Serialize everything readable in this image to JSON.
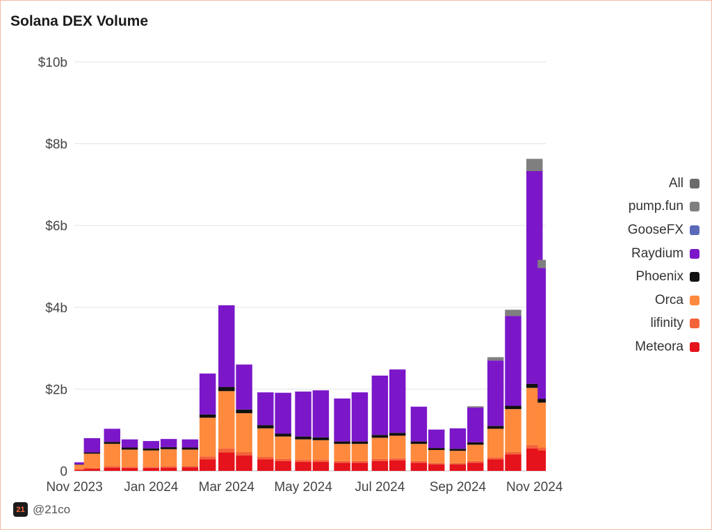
{
  "chart_data": {
    "type": "bar",
    "stacked": true,
    "title": "Solana DEX Volume",
    "xlabel": "",
    "ylabel": "",
    "ylim": [
      0,
      10000000000
    ],
    "y_ticks": [
      "0",
      "$2b",
      "$4b",
      "$6b",
      "$8b",
      "$10b"
    ],
    "x_ticks": [
      "Nov 2023",
      "Jan 2024",
      "Mar 2024",
      "May 2024",
      "Jul 2024",
      "Sep 2024",
      "Nov 2024"
    ],
    "grid": true,
    "legend_position": "right",
    "legend": [
      "All",
      "pump.fun",
      "GooseFX",
      "Raydium",
      "Phoenix",
      "Orca",
      "lifinity",
      "Meteora"
    ],
    "x": [
      "2023-11-01",
      "2023-11-15",
      "2023-12-01",
      "2023-12-15",
      "2024-01-01",
      "2024-01-15",
      "2024-02-01",
      "2024-02-15",
      "2024-03-01",
      "2024-03-15",
      "2024-04-01",
      "2024-04-15",
      "2024-05-01",
      "2024-05-15",
      "2024-06-01",
      "2024-06-15",
      "2024-07-01",
      "2024-07-15",
      "2024-08-01",
      "2024-08-15",
      "2024-09-01",
      "2024-09-15",
      "2024-10-01",
      "2024-10-15",
      "2024-11-01",
      "2024-11-10"
    ],
    "series": [
      {
        "name": "Meteora",
        "color": "#e5131b",
        "values": [
          0.03,
          0.05,
          0.08,
          0.07,
          0.07,
          0.08,
          0.09,
          0.28,
          0.45,
          0.38,
          0.28,
          0.24,
          0.22,
          0.22,
          0.2,
          0.2,
          0.24,
          0.26,
          0.2,
          0.16,
          0.16,
          0.2,
          0.28,
          0.4,
          0.55,
          0.5
        ]
      },
      {
        "name": "lifinity",
        "color": "#f4623a",
        "values": [
          0.01,
          0.02,
          0.03,
          0.03,
          0.03,
          0.03,
          0.03,
          0.07,
          0.1,
          0.08,
          0.06,
          0.05,
          0.05,
          0.05,
          0.04,
          0.04,
          0.05,
          0.05,
          0.04,
          0.03,
          0.03,
          0.04,
          0.05,
          0.06,
          0.08,
          0.07
        ]
      },
      {
        "name": "Orca",
        "color": "#ff8a3d",
        "values": [
          0.11,
          0.35,
          0.55,
          0.42,
          0.4,
          0.42,
          0.4,
          0.95,
          1.4,
          0.95,
          0.7,
          0.55,
          0.5,
          0.48,
          0.42,
          0.42,
          0.52,
          0.55,
          0.42,
          0.32,
          0.3,
          0.4,
          0.7,
          1.05,
          1.4,
          1.1
        ]
      },
      {
        "name": "Phoenix",
        "color": "#111111",
        "values": [
          0.01,
          0.03,
          0.05,
          0.05,
          0.05,
          0.05,
          0.05,
          0.08,
          0.1,
          0.09,
          0.08,
          0.07,
          0.07,
          0.07,
          0.06,
          0.06,
          0.07,
          0.07,
          0.06,
          0.05,
          0.05,
          0.06,
          0.07,
          0.08,
          0.1,
          0.09
        ]
      },
      {
        "name": "Raydium",
        "color": "#7b17c9",
        "values": [
          0.05,
          0.35,
          0.32,
          0.2,
          0.18,
          0.2,
          0.2,
          1.0,
          2.0,
          1.1,
          0.8,
          1.0,
          1.1,
          1.15,
          1.05,
          1.2,
          1.45,
          1.55,
          0.85,
          0.45,
          0.5,
          0.85,
          1.6,
          2.2,
          5.2,
          3.2
        ]
      },
      {
        "name": "GooseFX",
        "color": "#5b6ab8",
        "values": [
          0.0,
          0.0,
          0.0,
          0.0,
          0.0,
          0.0,
          0.0,
          0.0,
          0.0,
          0.0,
          0.0,
          0.0,
          0.0,
          0.0,
          0.0,
          0.0,
          0.0,
          0.0,
          0.0,
          0.0,
          0.0,
          0.0,
          0.0,
          0.0,
          0.0,
          0.0
        ]
      },
      {
        "name": "pump.fun",
        "color": "#7f7f7f",
        "values": [
          0.0,
          0.0,
          0.0,
          0.0,
          0.0,
          0.0,
          0.0,
          0.0,
          0.0,
          0.0,
          0.0,
          0.0,
          0.0,
          0.0,
          0.0,
          0.0,
          0.0,
          0.0,
          0.0,
          0.0,
          0.0,
          0.03,
          0.08,
          0.15,
          0.3,
          0.2
        ]
      }
    ],
    "values_unit": "billion USD",
    "legend_colors": {
      "All": "#6b6b6b",
      "pump.fun": "#7f7f7f",
      "GooseFX": "#5b6ab8",
      "Raydium": "#7b17c9",
      "Phoenix": "#111111",
      "Orca": "#ff8a3d",
      "lifinity": "#f4623a",
      "Meteora": "#e5131b"
    }
  },
  "credit": {
    "handle": "@21co",
    "logo_text": "21"
  }
}
